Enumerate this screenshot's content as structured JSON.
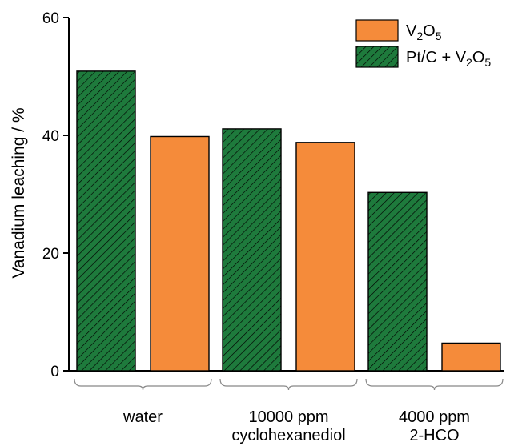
{
  "chart_data": {
    "type": "bar",
    "ylabel": "Vanadium leaching / %",
    "ylim": [
      0,
      60
    ],
    "yticks": [
      0,
      20,
      40,
      60
    ],
    "grid": false,
    "legend_position": "top-right",
    "groups": [
      {
        "lines": [
          "water"
        ]
      },
      {
        "lines": [
          "10000 ppm",
          "cyclohexanediol"
        ]
      },
      {
        "lines": [
          "4000 ppm",
          "2-HCO"
        ]
      }
    ],
    "series": [
      {
        "name": "Pt/C + V2O5",
        "legend_parts": [
          [
            "Pt/C + V",
            false
          ],
          [
            "2",
            true
          ],
          [
            "O",
            false
          ],
          [
            "5",
            true
          ]
        ],
        "color": "#1e7a3c",
        "pattern": "hatch",
        "values": [
          50.9,
          41.1,
          30.3
        ]
      },
      {
        "name": "V2O5",
        "legend_parts": [
          [
            "V",
            false
          ],
          [
            "2",
            true
          ],
          [
            "O",
            false
          ],
          [
            "5",
            true
          ]
        ],
        "color": "#f58b3a",
        "pattern": "solid",
        "values": [
          39.8,
          38.8,
          4.7
        ]
      }
    ],
    "legend_order": [
      1,
      0
    ]
  }
}
